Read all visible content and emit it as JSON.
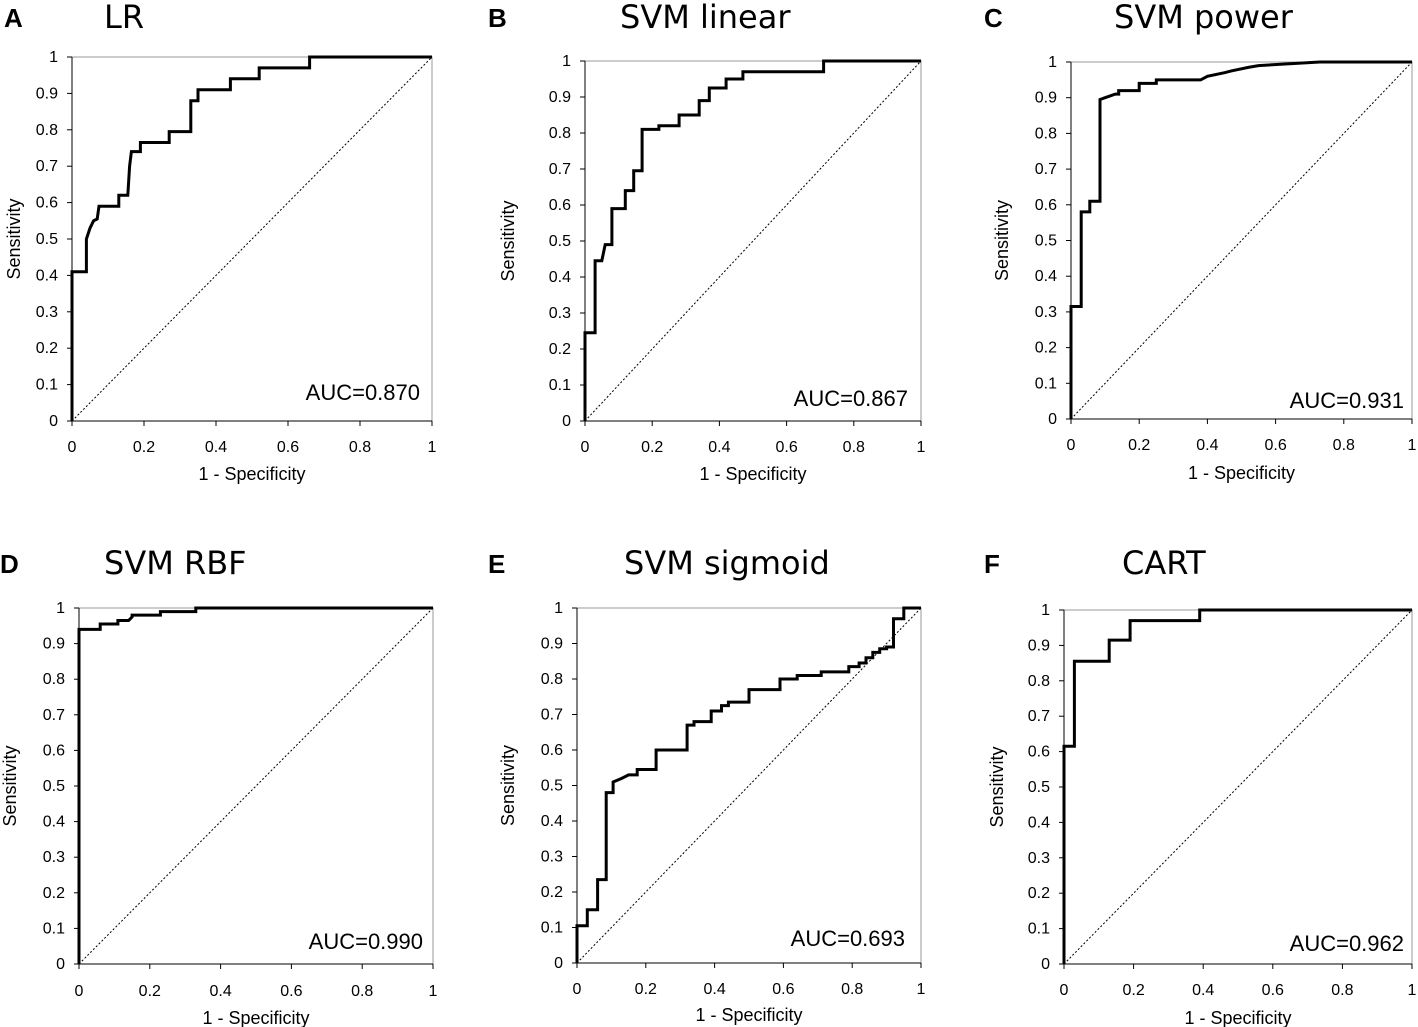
{
  "chart_data": [
    {
      "type": "line",
      "panel": "A",
      "title": "LR",
      "xlabel": "1 - Specificity",
      "ylabel": "Sensitivity",
      "xlim": [
        0,
        1
      ],
      "ylim": [
        0,
        1
      ],
      "xticks": [
        "0",
        "0.2",
        "0.4",
        "0.6",
        "0.8",
        "1"
      ],
      "yticks": [
        "0",
        "0.1",
        "0.2",
        "0.3",
        "0.4",
        "0.5",
        "0.6",
        "0.7",
        "0.8",
        "0.9",
        "1"
      ],
      "auc_label": "AUC=0.870",
      "series": [
        {
          "name": "LR",
          "x": [
            0,
            0,
            0.04,
            0.04,
            0.05,
            0.06,
            0.07,
            0.075,
            0.1,
            0.1,
            0.13,
            0.13,
            0.155,
            0.16,
            0.165,
            0.19,
            0.19,
            0.27,
            0.27,
            0.33,
            0.33,
            0.35,
            0.35,
            0.44,
            0.44,
            0.52,
            0.52,
            0.66,
            0.66,
            1
          ],
          "y": [
            0,
            0.41,
            0.41,
            0.5,
            0.53,
            0.55,
            0.555,
            0.59,
            0.59,
            0.59,
            0.59,
            0.62,
            0.62,
            0.7,
            0.74,
            0.74,
            0.765,
            0.765,
            0.795,
            0.795,
            0.88,
            0.88,
            0.91,
            0.91,
            0.94,
            0.94,
            0.97,
            0.97,
            1.0,
            1.0
          ]
        }
      ]
    },
    {
      "type": "line",
      "panel": "B",
      "title": "SVM linear",
      "xlabel": "1 - Specificity",
      "ylabel": "Sensitivity",
      "xlim": [
        0,
        1
      ],
      "ylim": [
        0,
        1
      ],
      "xticks": [
        "0",
        "0.2",
        "0.4",
        "0.6",
        "0.8",
        "1"
      ],
      "yticks": [
        "0",
        "0.1",
        "0.2",
        "0.3",
        "0.4",
        "0.5",
        "0.6",
        "0.7",
        "0.8",
        "0.9",
        "1"
      ],
      "auc_label": "AUC=0.867",
      "series": [
        {
          "name": "SVM linear",
          "x": [
            0,
            0,
            0.03,
            0.03,
            0.05,
            0.06,
            0.08,
            0.08,
            0.1,
            0.12,
            0.12,
            0.145,
            0.145,
            0.17,
            0.17,
            0.22,
            0.22,
            0.28,
            0.28,
            0.34,
            0.34,
            0.37,
            0.37,
            0.42,
            0.42,
            0.47,
            0.47,
            0.71,
            0.71,
            1
          ],
          "y": [
            0,
            0.245,
            0.245,
            0.445,
            0.445,
            0.49,
            0.49,
            0.59,
            0.59,
            0.59,
            0.64,
            0.64,
            0.695,
            0.695,
            0.81,
            0.81,
            0.82,
            0.82,
            0.85,
            0.85,
            0.89,
            0.89,
            0.925,
            0.925,
            0.95,
            0.95,
            0.97,
            0.97,
            1.0,
            1.0
          ]
        }
      ]
    },
    {
      "type": "line",
      "panel": "C",
      "title": "SVM power",
      "xlabel": "1 - Specificity",
      "ylabel": "Sensitivity",
      "xlim": [
        0,
        1
      ],
      "ylim": [
        0,
        1
      ],
      "xticks": [
        "0",
        "0.2",
        "0.4",
        "0.6",
        "0.8",
        "1"
      ],
      "yticks": [
        "0",
        "0.1",
        "0.2",
        "0.3",
        "0.4",
        "0.5",
        "0.6",
        "0.7",
        "0.8",
        "0.9",
        "1"
      ],
      "auc_label": "AUC=0.931",
      "series": [
        {
          "name": "SVM power",
          "x": [
            0,
            0,
            0.03,
            0.03,
            0.055,
            0.055,
            0.085,
            0.085,
            0.1,
            0.13,
            0.14,
            0.14,
            0.2,
            0.2,
            0.25,
            0.25,
            0.38,
            0.4,
            0.45,
            0.47,
            0.52,
            0.55,
            0.73,
            1
          ],
          "y": [
            0,
            0.315,
            0.315,
            0.58,
            0.58,
            0.61,
            0.61,
            0.895,
            0.9,
            0.91,
            0.91,
            0.92,
            0.92,
            0.94,
            0.94,
            0.95,
            0.95,
            0.96,
            0.97,
            0.975,
            0.985,
            0.99,
            1.0,
            1.0
          ]
        }
      ]
    },
    {
      "type": "line",
      "panel": "D",
      "title": "SVM RBF",
      "xlabel": "1 - Specificity",
      "ylabel": "Sensitivity",
      "xlim": [
        0,
        1
      ],
      "ylim": [
        0,
        1
      ],
      "xticks": [
        "0",
        "0.2",
        "0.4",
        "0.6",
        "0.8",
        "1"
      ],
      "yticks": [
        "0",
        "0.1",
        "0.2",
        "0.3",
        "0.4",
        "0.5",
        "0.6",
        "0.7",
        "0.8",
        "0.9",
        "1"
      ],
      "auc_label": "AUC=0.990",
      "series": [
        {
          "name": "SVM RBF",
          "x": [
            0,
            0,
            0.06,
            0.06,
            0.11,
            0.11,
            0.14,
            0.15,
            0.15,
            0.23,
            0.23,
            0.33,
            0.33,
            1
          ],
          "y": [
            0,
            0.94,
            0.94,
            0.955,
            0.955,
            0.965,
            0.965,
            0.975,
            0.98,
            0.98,
            0.99,
            0.99,
            1.0,
            1.0
          ]
        }
      ]
    },
    {
      "type": "line",
      "panel": "E",
      "title": "SVM sigmoid",
      "xlabel": "1 - Specificity",
      "ylabel": "Sensitivity",
      "xlim": [
        0,
        1
      ],
      "ylim": [
        0,
        1
      ],
      "xticks": [
        "0",
        "0.2",
        "0.4",
        "0.6",
        "0.8",
        "1"
      ],
      "yticks": [
        "0",
        "0.1",
        "0.2",
        "0.3",
        "0.4",
        "0.5",
        "0.6",
        "0.7",
        "0.8",
        "0.9",
        "1"
      ],
      "auc_label": "AUC=0.693",
      "series": [
        {
          "name": "SVM sigmoid",
          "x": [
            0,
            0,
            0.03,
            0.03,
            0.06,
            0.06,
            0.085,
            0.085,
            0.105,
            0.105,
            0.13,
            0.15,
            0.175,
            0.175,
            0.23,
            0.23,
            0.32,
            0.32,
            0.34,
            0.34,
            0.39,
            0.39,
            0.42,
            0.42,
            0.44,
            0.44,
            0.5,
            0.5,
            0.59,
            0.59,
            0.64,
            0.64,
            0.71,
            0.71,
            0.79,
            0.79,
            0.82,
            0.82,
            0.84,
            0.84,
            0.86,
            0.86,
            0.88,
            0.88,
            0.9,
            0.9,
            0.92,
            0.92,
            0.95,
            0.95,
            1
          ],
          "y": [
            0,
            0.105,
            0.105,
            0.15,
            0.15,
            0.235,
            0.235,
            0.48,
            0.48,
            0.51,
            0.52,
            0.53,
            0.53,
            0.545,
            0.545,
            0.6,
            0.6,
            0.67,
            0.67,
            0.68,
            0.68,
            0.71,
            0.71,
            0.725,
            0.725,
            0.735,
            0.735,
            0.77,
            0.77,
            0.8,
            0.8,
            0.81,
            0.81,
            0.82,
            0.82,
            0.835,
            0.835,
            0.845,
            0.845,
            0.86,
            0.86,
            0.875,
            0.875,
            0.885,
            0.885,
            0.89,
            0.89,
            0.97,
            0.97,
            1.0,
            1.0
          ]
        }
      ]
    },
    {
      "type": "line",
      "panel": "F",
      "title": "CART",
      "xlabel": "1 - Specificity",
      "ylabel": "Sensitivity",
      "xlim": [
        0,
        1
      ],
      "ylim": [
        0,
        1
      ],
      "xticks": [
        "0",
        "0.2",
        "0.4",
        "0.6",
        "0.8",
        "1"
      ],
      "yticks": [
        "0",
        "0.1",
        "0.2",
        "0.3",
        "0.4",
        "0.5",
        "0.6",
        "0.7",
        "0.8",
        "0.9",
        "1"
      ],
      "auc_label": "AUC=0.962",
      "series": [
        {
          "name": "CART",
          "x": [
            0,
            0,
            0.03,
            0.03,
            0.13,
            0.13,
            0.19,
            0.19,
            0.39,
            0.39,
            1
          ],
          "y": [
            0,
            0.615,
            0.615,
            0.855,
            0.855,
            0.915,
            0.915,
            0.97,
            0.97,
            1.0,
            1.0
          ]
        }
      ]
    }
  ]
}
